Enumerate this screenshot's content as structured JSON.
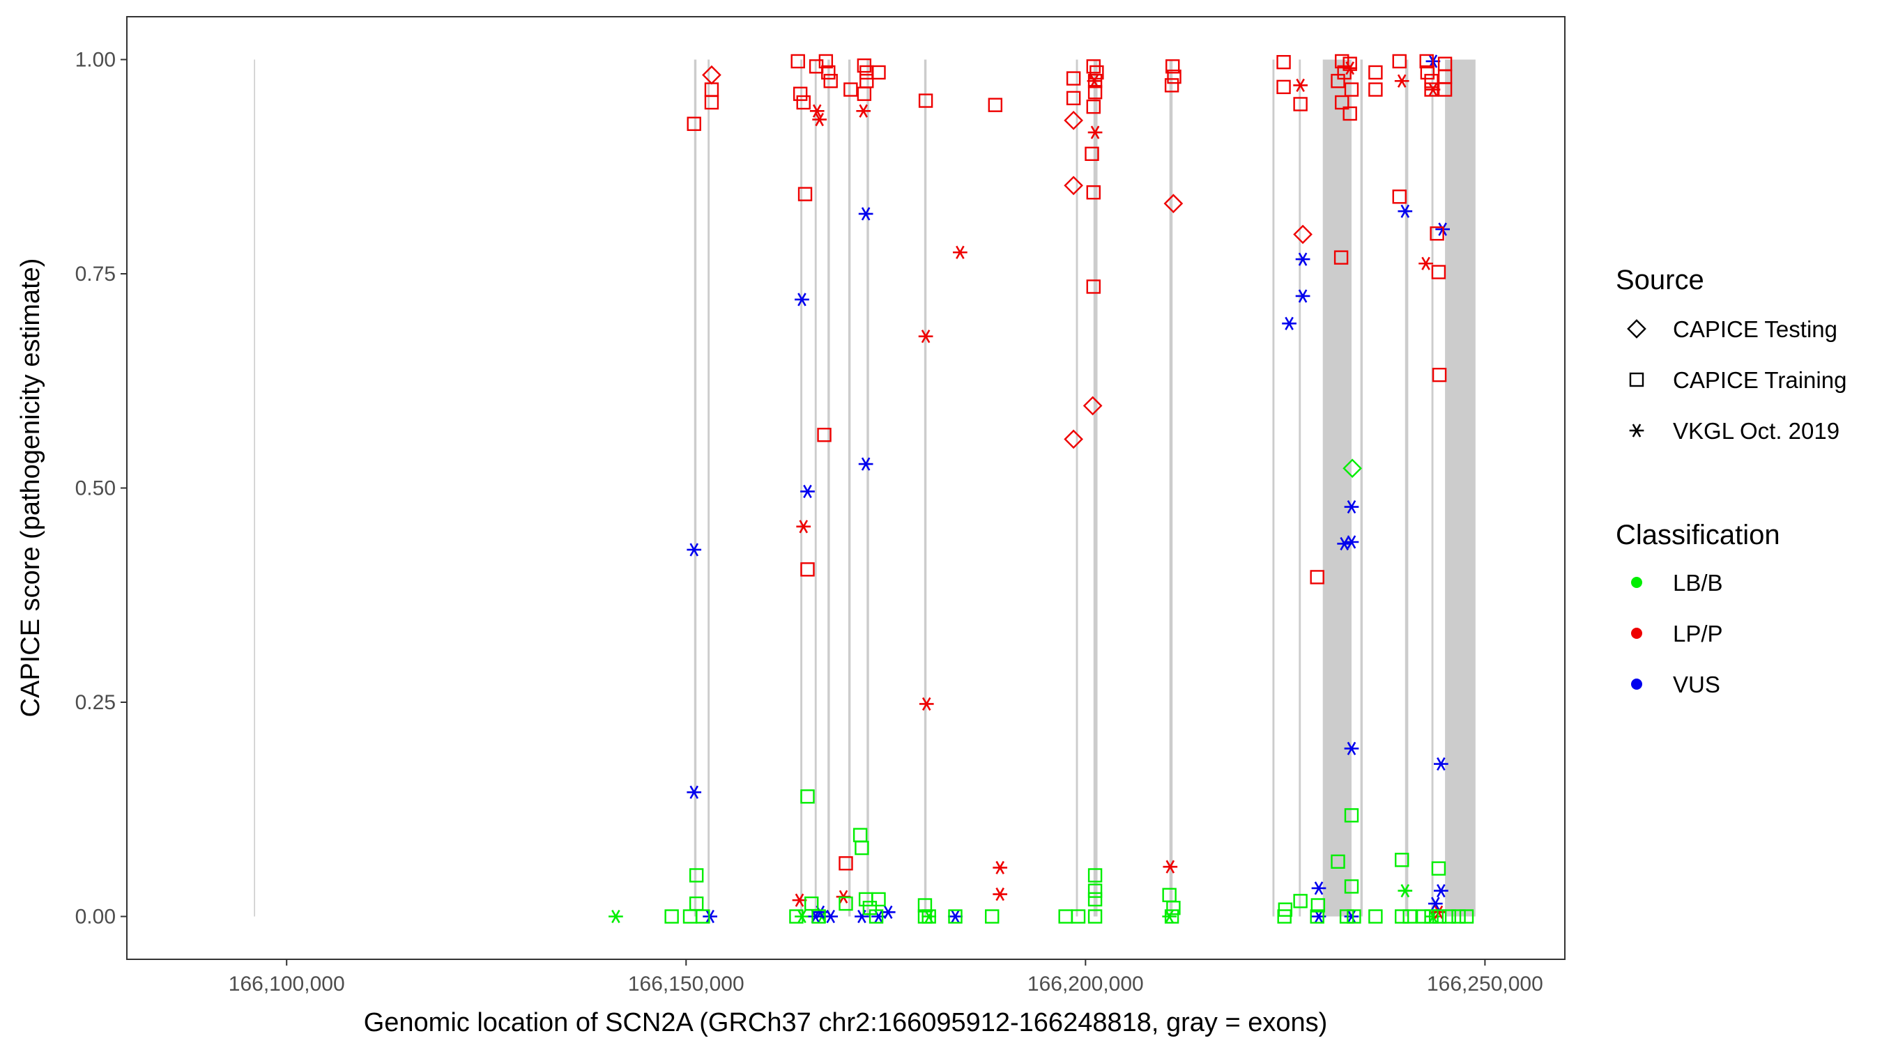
{
  "chart_data": {
    "type": "scatter",
    "title": "",
    "xlabel": "Genomic location of SCN2A (GRCh37 chr2:166095912-166248818, gray = exons)",
    "ylabel": "CAPICE score (pathogenicity estimate)",
    "xlim": [
      166080000,
      166260000
    ],
    "ylim": [
      -0.05,
      1.05
    ],
    "x_ticks": [
      166100000,
      166150000,
      166200000,
      166250000
    ],
    "x_tick_labels": [
      "166,100,000",
      "166,150,000",
      "166,200,000",
      "166,250,000"
    ],
    "y_ticks": [
      0.0,
      0.25,
      0.5,
      0.75,
      1.0
    ],
    "y_tick_labels": [
      "0.00",
      "0.25",
      "0.50",
      "0.75",
      "1.00"
    ],
    "grid": false,
    "exons": [
      [
        166095912,
        166096000
      ],
      [
        166151000,
        166151300
      ],
      [
        166152700,
        166152950
      ],
      [
        166164300,
        166164550
      ],
      [
        166166100,
        166166350
      ],
      [
        166167700,
        166168000
      ],
      [
        166170300,
        166170600
      ],
      [
        166172600,
        166172900
      ],
      [
        166179800,
        166180100
      ],
      [
        166198800,
        166199050
      ],
      [
        166201000,
        166201500
      ],
      [
        166210500,
        166210900
      ],
      [
        166223400,
        166223650
      ],
      [
        166226700,
        166226950
      ],
      [
        166229700,
        166233300
      ],
      [
        166234400,
        166234700
      ],
      [
        166240000,
        166240400
      ],
      [
        166243300,
        166243550
      ],
      [
        166245000,
        166248818
      ]
    ],
    "legend": {
      "source_title": "Source",
      "source_entries": [
        {
          "name": "CAPICE Testing",
          "shape": "diamond"
        },
        {
          "name": "CAPICE Training",
          "shape": "square"
        },
        {
          "name": "VKGL Oct. 2019",
          "shape": "asterisk"
        }
      ],
      "class_title": "Classification",
      "class_entries": [
        {
          "name": "LB/B",
          "color": "#00ee00"
        },
        {
          "name": "LP/P",
          "color": "#ee0000"
        },
        {
          "name": "VUS",
          "color": "#0000ee"
        }
      ]
    },
    "colors": {
      "LB/B": "#00ee00",
      "LP/P": "#ee0000",
      "VUS": "#0000ee",
      "exon": "#cccccc"
    },
    "series": [
      {
        "name": "VKGL Oct. 2019 / LB/B",
        "shape": "asterisk",
        "class": "LB/B",
        "points": [
          [
            166141200,
            0.0
          ],
          [
            166164500,
            0.0
          ],
          [
            166167000,
            0.0
          ],
          [
            166180400,
            0.0
          ],
          [
            166210500,
            0.0
          ],
          [
            166240000,
            0.03
          ],
          [
            166243500,
            0.0
          ]
        ]
      },
      {
        "name": "VKGL Oct. 2019 / LP/P",
        "shape": "asterisk",
        "class": "LP/P",
        "points": [
          [
            166164200,
            0.019
          ],
          [
            166166400,
            0.94
          ],
          [
            166166700,
            0.93
          ],
          [
            166169700,
            0.023
          ],
          [
            166172200,
            0.94
          ],
          [
            166164700,
            0.455
          ],
          [
            166180100,
            0.248
          ],
          [
            166180000,
            0.677
          ],
          [
            166184300,
            0.775
          ],
          [
            166189300,
            0.057
          ],
          [
            166189300,
            0.026
          ],
          [
            166201100,
            0.975
          ],
          [
            166201200,
            0.915
          ],
          [
            166210600,
            0.058
          ],
          [
            166226900,
            0.97
          ],
          [
            166233100,
            0.99
          ],
          [
            166239600,
            0.975
          ],
          [
            166242600,
            0.762
          ],
          [
            166243500,
            0.965
          ],
          [
            166244200,
            0.005
          ]
        ]
      },
      {
        "name": "VKGL Oct. 2019 / VUS",
        "shape": "asterisk",
        "class": "VUS",
        "points": [
          [
            166151000,
            0.428
          ],
          [
            166151000,
            0.145
          ],
          [
            166153000,
            0.0
          ],
          [
            166164500,
            0.72
          ],
          [
            166165200,
            0.496
          ],
          [
            166166200,
            0.0
          ],
          [
            166166800,
            0.005
          ],
          [
            166168100,
            0.0
          ],
          [
            166172500,
            0.82
          ],
          [
            166172500,
            0.528
          ],
          [
            166172000,
            0.0
          ],
          [
            166174100,
            0.0
          ],
          [
            166175300,
            0.005
          ],
          [
            166183700,
            0.0
          ],
          [
            166225500,
            0.692
          ],
          [
            166227200,
            0.767
          ],
          [
            166227200,
            0.724
          ],
          [
            166229200,
            0.033
          ],
          [
            166229200,
            0.0
          ],
          [
            166232400,
            0.435
          ],
          [
            166233300,
            0.437
          ],
          [
            166233300,
            0.478
          ],
          [
            166233300,
            0.196
          ],
          [
            166233300,
            0.0
          ],
          [
            166240000,
            0.823
          ],
          [
            166243500,
            0.998
          ],
          [
            166243800,
            0.015
          ],
          [
            166244500,
            0.03
          ],
          [
            166244500,
            0.178
          ],
          [
            166244700,
            0.802
          ]
        ]
      },
      {
        "name": "CAPICE Testing / LB/B",
        "shape": "diamond",
        "class": "LB/B",
        "points": [
          [
            166233400,
            0.523
          ]
        ]
      },
      {
        "name": "CAPICE Testing / LP/P",
        "shape": "diamond",
        "class": "LP/P",
        "points": [
          [
            166153200,
            0.982
          ],
          [
            166198500,
            0.929
          ],
          [
            166198500,
            0.853
          ],
          [
            166198500,
            0.557
          ],
          [
            166200900,
            0.596
          ],
          [
            166211000,
            0.832
          ],
          [
            166227200,
            0.796
          ]
        ]
      },
      {
        "name": "CAPICE Training / LP/P",
        "shape": "square",
        "class": "LP/P",
        "points": [
          [
            166151000,
            0.925
          ],
          [
            166153200,
            0.965
          ],
          [
            166153200,
            0.95
          ],
          [
            166164000,
            0.998
          ],
          [
            166164300,
            0.96
          ],
          [
            166164700,
            0.95
          ],
          [
            166166300,
            0.992
          ],
          [
            166167500,
            0.998
          ],
          [
            166167800,
            0.985
          ],
          [
            166168100,
            0.975
          ],
          [
            166170600,
            0.965
          ],
          [
            166172300,
            0.993
          ],
          [
            166172600,
            0.985
          ],
          [
            166172600,
            0.975
          ],
          [
            166172300,
            0.96
          ],
          [
            166174100,
            0.985
          ],
          [
            166164900,
            0.843
          ],
          [
            166167300,
            0.562
          ],
          [
            166165200,
            0.405
          ],
          [
            166170000,
            0.062
          ],
          [
            166180000,
            0.952
          ],
          [
            166188700,
            0.947
          ],
          [
            166198500,
            0.978
          ],
          [
            166198500,
            0.955
          ],
          [
            166201000,
            0.992
          ],
          [
            166201200,
            0.975
          ],
          [
            166201400,
            0.985
          ],
          [
            166201200,
            0.962
          ],
          [
            166201000,
            0.945
          ],
          [
            166200800,
            0.89
          ],
          [
            166201000,
            0.845
          ],
          [
            166201000,
            0.735
          ],
          [
            166210900,
            0.992
          ],
          [
            166211100,
            0.98
          ],
          [
            166210800,
            0.97
          ],
          [
            166224800,
            0.997
          ],
          [
            166224800,
            0.968
          ],
          [
            166226900,
            0.948
          ],
          [
            166229000,
            0.396
          ],
          [
            166232100,
            0.998
          ],
          [
            166232400,
            0.985
          ],
          [
            166233100,
            0.995
          ],
          [
            166231600,
            0.975
          ],
          [
            166233300,
            0.965
          ],
          [
            166232100,
            0.95
          ],
          [
            166233100,
            0.937
          ],
          [
            166232000,
            0.769
          ],
          [
            166236300,
            0.985
          ],
          [
            166236300,
            0.965
          ],
          [
            166239300,
            0.998
          ],
          [
            166239300,
            0.84
          ],
          [
            166242700,
            0.998
          ],
          [
            166242800,
            0.985
          ],
          [
            166243300,
            0.975
          ],
          [
            166243300,
            0.965
          ],
          [
            166244000,
            0.797
          ],
          [
            166244200,
            0.752
          ],
          [
            166244300,
            0.632
          ],
          [
            166245000,
            0.995
          ],
          [
            166245000,
            0.98
          ],
          [
            166245000,
            0.965
          ]
        ]
      },
      {
        "name": "CAPICE Training / LB/B",
        "shape": "square",
        "class": "LB/B",
        "points": [
          [
            166148200,
            0.0
          ],
          [
            166150500,
            0.0
          ],
          [
            166151300,
            0.048
          ],
          [
            166151300,
            0.015
          ],
          [
            166152100,
            0.0
          ],
          [
            166163800,
            0.0
          ],
          [
            166165200,
            0.14
          ],
          [
            166165700,
            0.015
          ],
          [
            166166600,
            0.0
          ],
          [
            166170000,
            0.015
          ],
          [
            166171800,
            0.095
          ],
          [
            166172000,
            0.08
          ],
          [
            166172500,
            0.02
          ],
          [
            166173000,
            0.01
          ],
          [
            166174100,
            0.02
          ],
          [
            166173800,
            0.0
          ],
          [
            166179900,
            0.013
          ],
          [
            166179900,
            0.0
          ],
          [
            166180400,
            0.0
          ],
          [
            166183700,
            0.0
          ],
          [
            166188300,
            0.0
          ],
          [
            166197500,
            0.0
          ],
          [
            166199100,
            0.0
          ],
          [
            166201200,
            0.048
          ],
          [
            166201200,
            0.03
          ],
          [
            166201200,
            0.02
          ],
          [
            166201200,
            0.0
          ],
          [
            166210500,
            0.025
          ],
          [
            166210800,
            0.0
          ],
          [
            166211000,
            0.01
          ],
          [
            166225000,
            0.008
          ],
          [
            166224900,
            0.0
          ],
          [
            166226900,
            0.018
          ],
          [
            166229100,
            0.013
          ],
          [
            166229000,
            0.0
          ],
          [
            166231600,
            0.064
          ],
          [
            166232700,
            0.0
          ],
          [
            166233300,
            0.118
          ],
          [
            166233300,
            0.035
          ],
          [
            166233600,
            0.0
          ],
          [
            166236300,
            0.0
          ],
          [
            166239600,
            0.066
          ],
          [
            166239600,
            0.0
          ],
          [
            166240600,
            0.0
          ],
          [
            166242300,
            0.0
          ],
          [
            166243300,
            0.0
          ],
          [
            166244200,
            0.056
          ],
          [
            166244300,
            0.0
          ],
          [
            166245500,
            0.0
          ],
          [
            166246700,
            0.0
          ],
          [
            166247700,
            0.0
          ]
        ]
      }
    ]
  }
}
